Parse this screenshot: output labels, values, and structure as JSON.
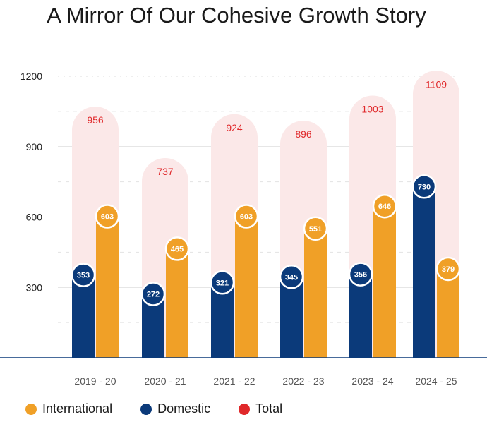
{
  "chart_data": {
    "type": "bar",
    "title": "A Mirror Of Our Cohesive Growth Story",
    "categories": [
      "2019 - 20",
      "2020 - 21",
      "2021 - 22",
      "2022 - 23",
      "2023 - 24",
      "2024 - 25"
    ],
    "series": [
      {
        "name": "Domestic",
        "values": [
          353,
          272,
          321,
          345,
          356,
          730
        ]
      },
      {
        "name": "International",
        "values": [
          603,
          465,
          603,
          551,
          646,
          379
        ]
      }
    ],
    "totals": {
      "name": "Total",
      "values": [
        956,
        737,
        924,
        896,
        1003,
        1109
      ]
    },
    "y_ticks": [
      300,
      600,
      900,
      1200
    ],
    "ylim": [
      0,
      1200
    ],
    "xlabel": "",
    "ylabel": "",
    "legend": [
      "International",
      "Domestic",
      "Total"
    ],
    "legend_position": "bottom-left"
  },
  "colors": {
    "domestic": "#0b3a7a",
    "international": "#f0a027",
    "total": "#e0282a",
    "total_pill": "#fbe8e8",
    "axis": "#0b3a7a"
  }
}
